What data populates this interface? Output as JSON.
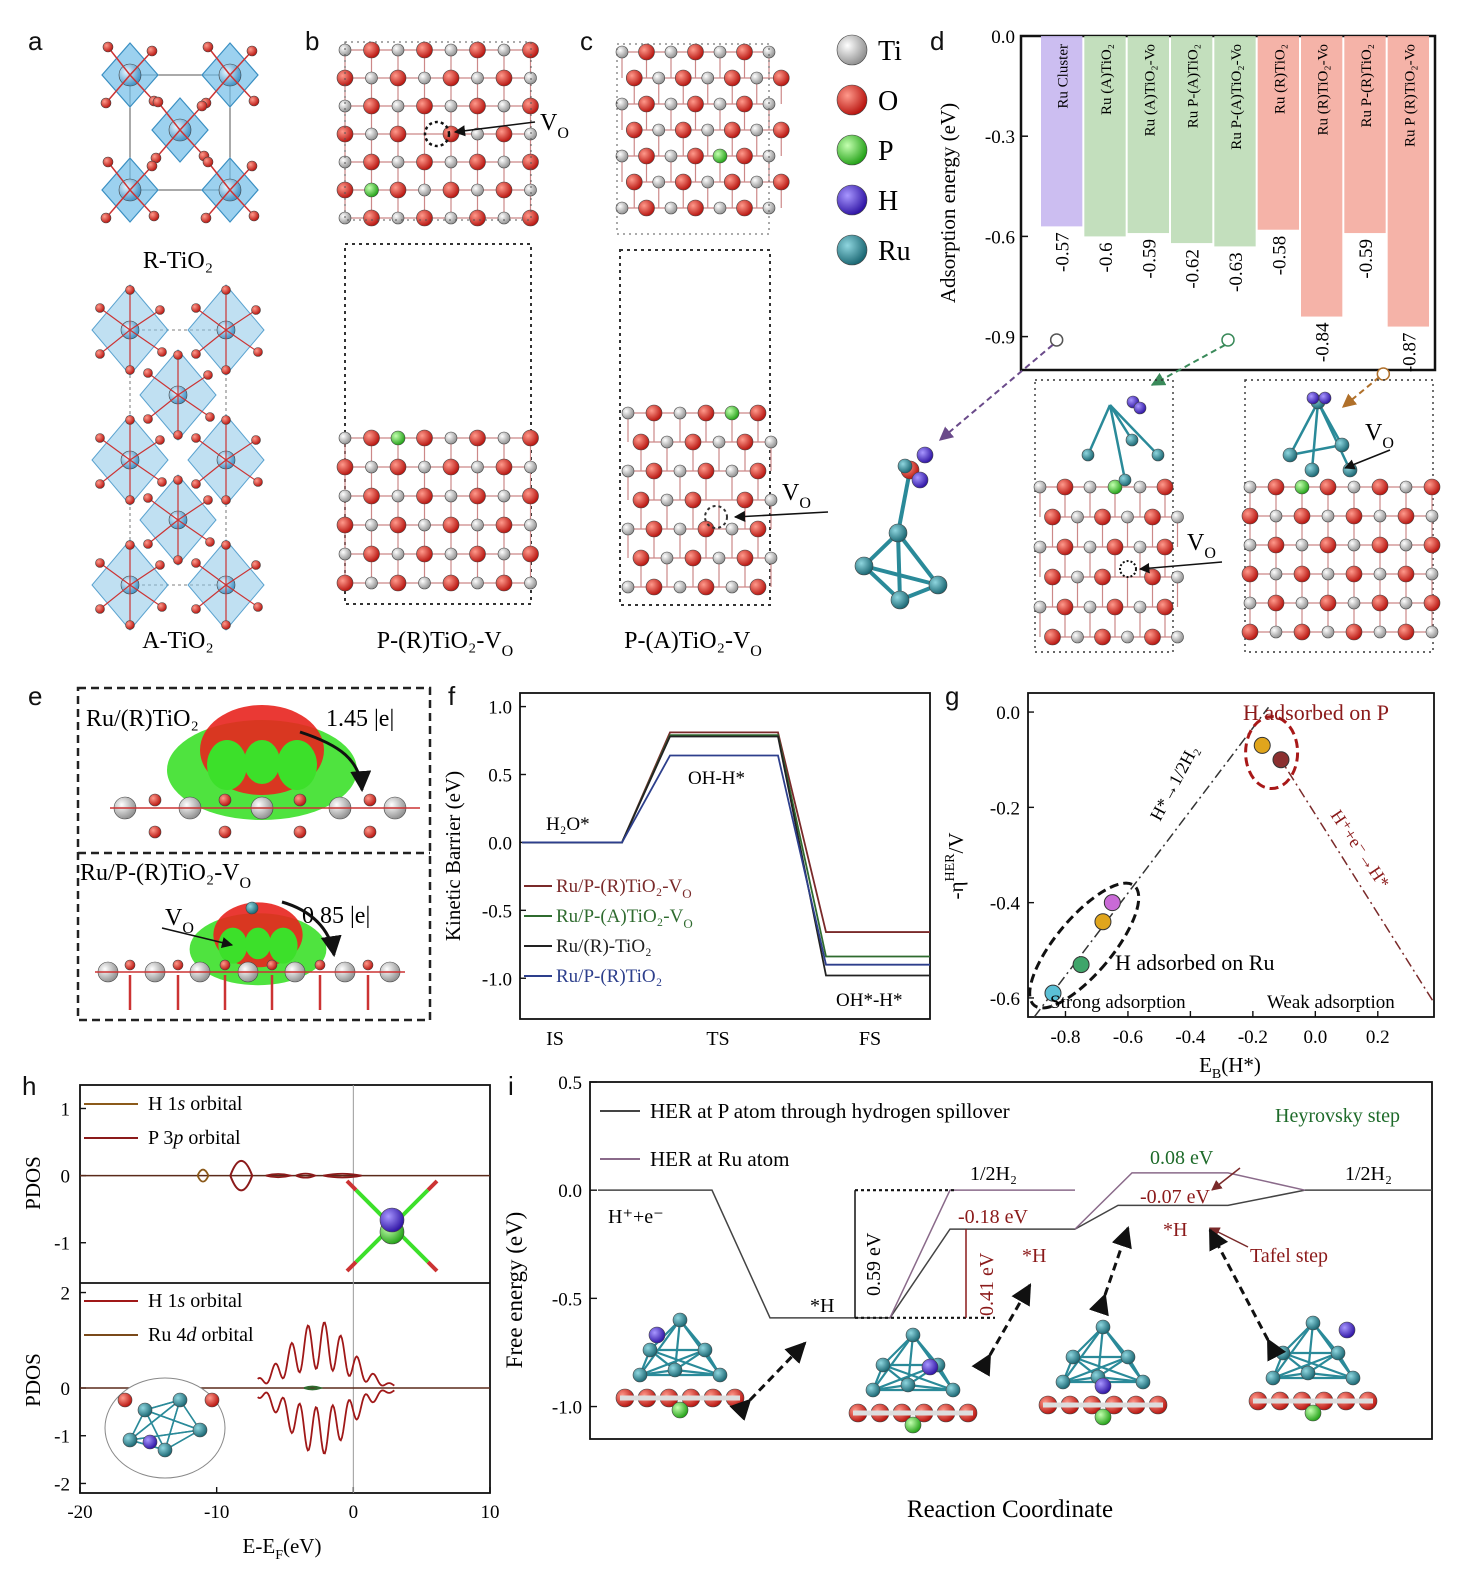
{
  "figure": {
    "panel_letters": [
      "a",
      "b",
      "c",
      "d",
      "e",
      "f",
      "g",
      "h",
      "i"
    ],
    "legend_atoms": [
      {
        "symbol": "Ti",
        "color": "#d6d6d6"
      },
      {
        "symbol": "O",
        "color": "#e8231e"
      },
      {
        "symbol": "P",
        "color": "#39d12a"
      },
      {
        "symbol": "H",
        "color": "#4a28c9"
      },
      {
        "symbol": "Ru",
        "color": "#2a8a99"
      }
    ],
    "colors": {
      "ti": "#d6d6d6",
      "o": "#e8231e",
      "p": "#39d12a",
      "h": "#4a28c9",
      "ru": "#2a8a99",
      "tio6": "#5aaee0"
    }
  },
  "panel_a": {
    "labels": {
      "rutile": "R-TiO₂",
      "anatase": "A-TiO₂"
    }
  },
  "panel_b": {
    "label": "P-(R)TiO₂-V",
    "label_sub": "O",
    "vo_text": "V",
    "vo_sub": "O"
  },
  "panel_c": {
    "label": "P-(A)TiO₂-V",
    "label_sub": "O",
    "vo_text": "V",
    "vo_sub": "O"
  },
  "panel_d_structures": {
    "vo_text_1": "V",
    "vo_text_2": "V",
    "vo_sub": "O"
  },
  "panel_e": {
    "label_top": "Ru/(R)TiO₂",
    "charge_top": "1.45 |e|",
    "label_bottom": "Ru/P-(R)TiO₂-V",
    "label_bottom_sub": "O",
    "charge_bottom": "0.85 |e|",
    "vo_text": "V",
    "vo_sub": "O"
  },
  "chart_data": [
    {
      "id": "d",
      "type": "bar",
      "ylabel": "Adsorption energy (eV)",
      "ylim": [
        -1.0,
        0.0
      ],
      "yticks": [
        "0.0",
        "-0.3",
        "-0.6",
        "-0.9"
      ],
      "ytick_values": [
        0.0,
        -0.3,
        -0.6,
        -0.9
      ],
      "categories": [
        "Ru Cluster",
        "Ru (A)TiO₂",
        "Ru (A)TiO₂-Vo",
        "Ru P-(A)TiO₂",
        "Ru P-(A)TiO₂-Vo",
        "Ru (R)TiO₂",
        "Ru (R)TiO₂-Vo",
        "Ru P-(R)TiO₂",
        "Ru P (R)TiO₂-Vo"
      ],
      "values": [
        -0.57,
        -0.6,
        -0.59,
        -0.62,
        -0.63,
        -0.58,
        -0.84,
        -0.59,
        -0.87
      ],
      "value_labels": [
        "-0.57",
        "-0.6",
        "-0.59",
        "-0.62",
        "-0.63",
        "-0.58",
        "-0.84",
        "-0.59",
        "-0.87"
      ],
      "bar_colors": [
        "#c7b7ef",
        "#bcdcb6",
        "#bcdcb6",
        "#bcdcb6",
        "#bcdcb6",
        "#f4ab9e",
        "#f4ab9e",
        "#f4ab9e",
        "#f4ab9e"
      ]
    },
    {
      "id": "f",
      "type": "line",
      "ylabel": "Kinetic Barrier (eV)",
      "ylim": [
        -1.3,
        1.1
      ],
      "yticks": [
        "1.0",
        "0.5",
        "0.0",
        "-0.5",
        "-1.0"
      ],
      "ytick_values": [
        1.0,
        0.5,
        0.0,
        -0.5,
        -1.0
      ],
      "categories": [
        "IS",
        "TS",
        "FS"
      ],
      "annotations": {
        "is": "H₂O*",
        "ts": "OH-H*",
        "fs": "OH*-H*"
      },
      "series": [
        {
          "name": "Ru/P-(R)TiO₂-V",
          "name_sub": "O",
          "values": [
            0.0,
            0.81,
            -0.66
          ],
          "color": "#7a2a2a"
        },
        {
          "name": "Ru/P-(A)TiO₂-V",
          "name_sub": "O",
          "values": [
            0.0,
            0.79,
            -0.84
          ],
          "color": "#2f6b2f"
        },
        {
          "name": "Ru/(R)-TiO₂",
          "name_sub": "",
          "values": [
            0.0,
            0.78,
            -0.98
          ],
          "color": "#222222"
        },
        {
          "name": "Ru/P-(R)TiO₂",
          "name_sub": "",
          "values": [
            0.0,
            0.64,
            -0.9
          ],
          "color": "#2d3f8c"
        }
      ]
    },
    {
      "id": "g",
      "type": "scatter",
      "xlabel": "E",
      "xlabel_sub": "B",
      "xlabel_tail": "(H*)",
      "ylabel": "-η",
      "ylabel_sup": "HER",
      "ylabel_tail": "/V",
      "xlim": [
        -0.92,
        0.38
      ],
      "ylim": [
        -0.64,
        0.04
      ],
      "xticks": [
        "-0.8",
        "-0.6",
        "-0.4",
        "-0.2",
        "0.0",
        "0.2"
      ],
      "xtick_values": [
        -0.8,
        -0.6,
        -0.4,
        -0.2,
        0.0,
        0.2
      ],
      "yticks": [
        "0.0",
        "-0.2",
        "-0.4",
        "-0.6"
      ],
      "ytick_values": [
        0.0,
        -0.2,
        -0.4,
        -0.6
      ],
      "points": [
        {
          "x": -0.84,
          "y": -0.59,
          "color": "#5bc0d6"
        },
        {
          "x": -0.75,
          "y": -0.53,
          "color": "#3fa56a"
        },
        {
          "x": -0.68,
          "y": -0.44,
          "color": "#e0a51c"
        },
        {
          "x": -0.65,
          "y": -0.4,
          "color": "#c96ad6"
        },
        {
          "x": -0.17,
          "y": -0.07,
          "color": "#e0a51c"
        },
        {
          "x": -0.11,
          "y": -0.1,
          "color": "#8b3030"
        }
      ],
      "annotations": {
        "top": "H adsorbed on P",
        "ru": "H adsorbed on Ru",
        "left_line": "H*→1/2H₂",
        "right_line": "H⁺+e⁻→H*",
        "strong": "Strong adsorption",
        "weak": "Weak adsorption"
      }
    },
    {
      "id": "h",
      "type": "line",
      "xlabel": "E-E",
      "xlabel_sub": "F",
      "xlabel_tail": "(eV)",
      "ylabel": "PDOS",
      "xlim": [
        -20,
        10
      ],
      "xticks": [
        "-20",
        "-10",
        "0",
        "10"
      ],
      "xtick_values": [
        -20,
        -10,
        0,
        10
      ],
      "top": {
        "ylim": [
          -1.6,
          1.35
        ],
        "yticks": [
          "1",
          "0",
          "-1"
        ],
        "ytick_values": [
          1,
          0,
          -1
        ],
        "legend": [
          {
            "pre": "H 1",
            "it": "s",
            "post": " orbital",
            "color": "#8b5a1a"
          },
          {
            "pre": "P 3",
            "it": "p",
            "post": " orbital",
            "color": "#8b1a1a"
          }
        ]
      },
      "bottom": {
        "ylim": [
          -2.2,
          2.2
        ],
        "yticks": [
          "2",
          "0",
          "-1",
          "-2"
        ],
        "ytick_values": [
          2,
          0,
          -1,
          -2
        ],
        "legend": [
          {
            "pre": "H 1",
            "it": "s",
            "post": " orbital",
            "color": "#a01818"
          },
          {
            "pre": "Ru 4",
            "it": "d",
            "post": " orbital",
            "color": "#7a4a1a"
          }
        ]
      }
    },
    {
      "id": "i",
      "type": "line",
      "xlabel": "Reaction Coordinate",
      "ylabel": "Free energy (eV)",
      "ylim": [
        -1.15,
        0.5
      ],
      "yticks": [
        "0.5",
        "0.0",
        "-0.5",
        "-1.0"
      ],
      "ytick_values": [
        0.5,
        0.0,
        -0.5,
        -1.0
      ],
      "levels": {
        "start": 0.0,
        "h_ads": -0.59,
        "p_ads": -0.18,
        "ru_top": 0.08,
        "ru_low": -0.07,
        "end": 0.0
      },
      "legend": [
        "HER at P atom through hydrogen spillover",
        "HER at Ru atom"
      ],
      "legend_colors": [
        "#444444",
        "#8a6a8a"
      ],
      "labels": {
        "hpe": "H⁺+e⁻",
        "h1": "*H",
        "h2": "*H",
        "h3": "*H",
        "half_h2_a": "1/2H₂",
        "half_h2_b": "1/2H₂",
        "e059": "0.59 eV",
        "e041": "0.41 eV",
        "e018": "-0.18 eV",
        "e008": "0.08 eV",
        "e007": "-0.07 eV",
        "heyrovsky": "Heyrovsky step",
        "tafel": "Tafel step"
      }
    }
  ]
}
